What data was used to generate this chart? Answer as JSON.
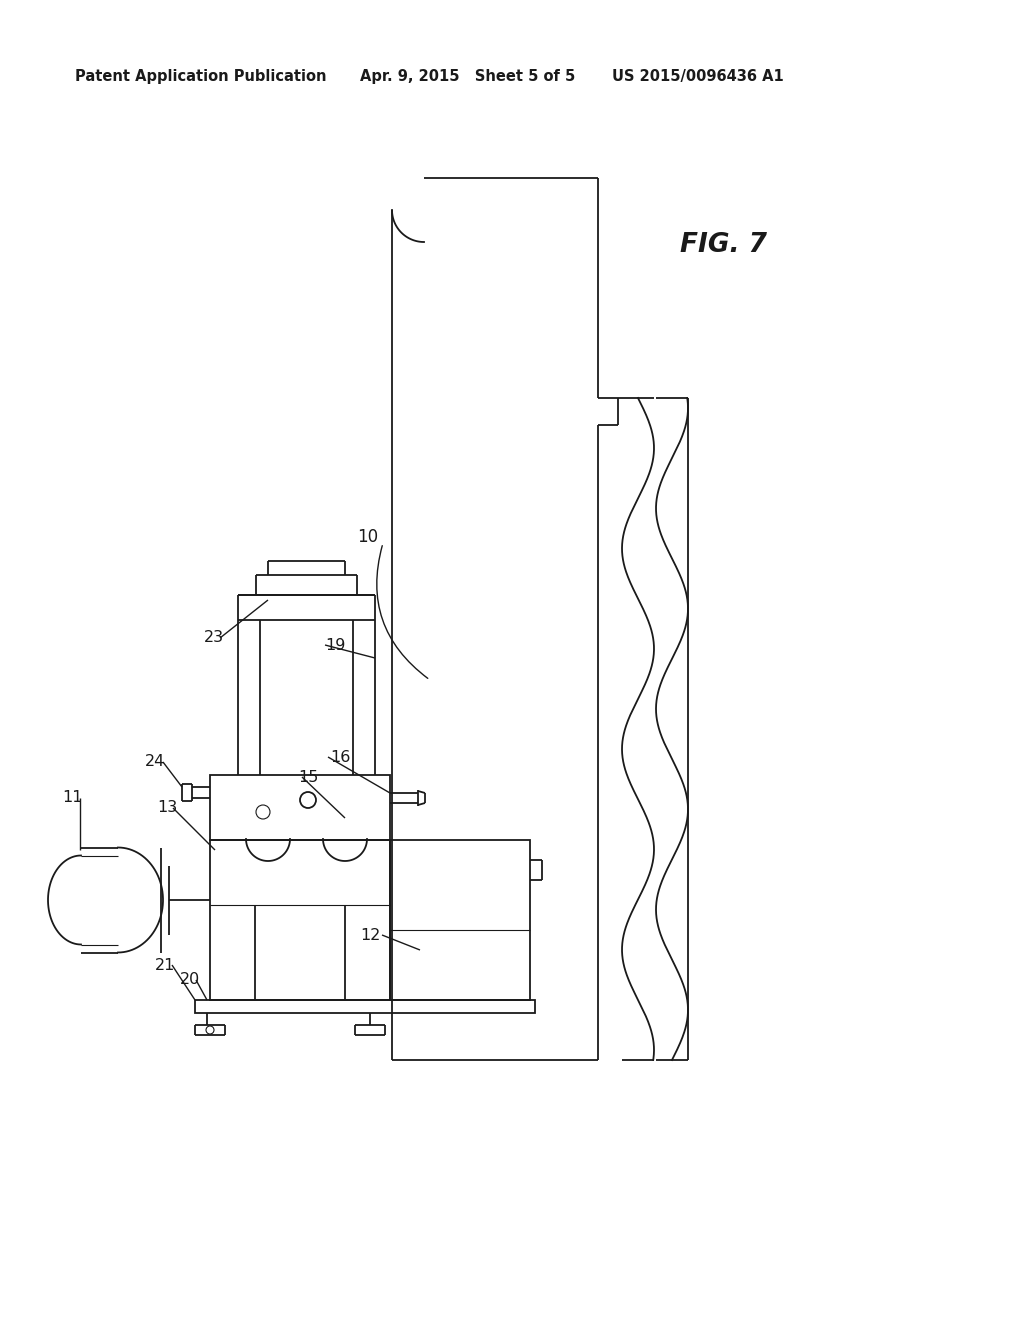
{
  "bg_color": "#ffffff",
  "line_color": "#1a1a1a",
  "lw": 1.3,
  "tlw": 0.8,
  "header_left": "Patent Application Publication",
  "header_mid": "Apr. 9, 2015   Sheet 5 of 5",
  "header_right": "US 2015/0096436 A1",
  "fig_label": "FIG. 7"
}
